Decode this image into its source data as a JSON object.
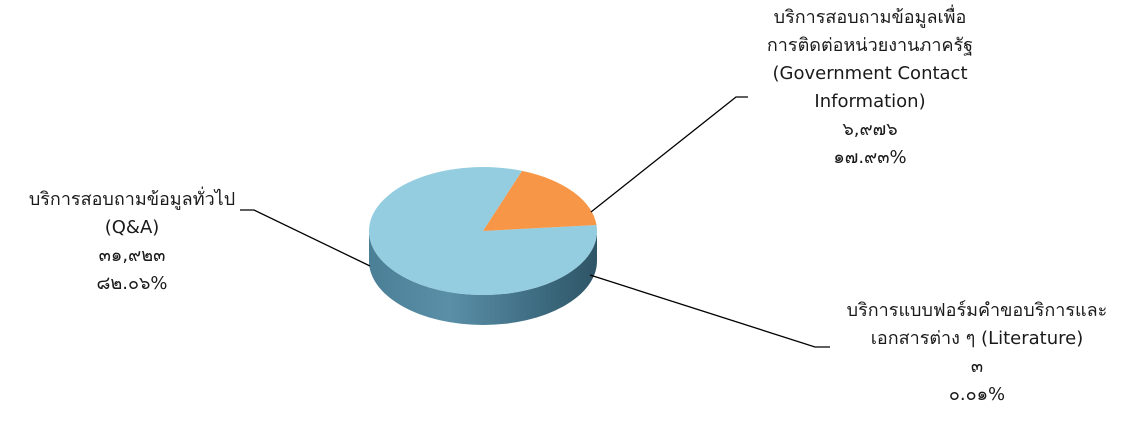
{
  "chart_data": {
    "type": "pie",
    "style": "3d",
    "title": "",
    "slices": [
      {
        "label_lines": [
          "บริการสอบถามข้อมูลทั่วไป",
          "(Q&A)"
        ],
        "value_text": "๓๑,๙๒๓",
        "percent_text": "๘๒.๐๖%",
        "value": 31923,
        "percent": 82.06,
        "color": "#94cde0"
      },
      {
        "label_lines": [
          "บริการสอบถามข้อมูลเพื่อ",
          "การติดต่อหน่วยงานภาครัฐ",
          "(Government Contact",
          "Information)"
        ],
        "value_text": "๖,๙๗๖",
        "percent_text": "๑๗.๙๓%",
        "value": 6976,
        "percent": 17.93,
        "color": "#f79646"
      },
      {
        "label_lines": [
          "บริการแบบฟอร์มคำขอบริการและ",
          "เอกสารต่าง ๆ (Literature)"
        ],
        "value_text": "๓",
        "percent_text": "๐.๐๑%",
        "value": 3,
        "percent": 0.01,
        "color": "#4bacc6"
      }
    ]
  }
}
